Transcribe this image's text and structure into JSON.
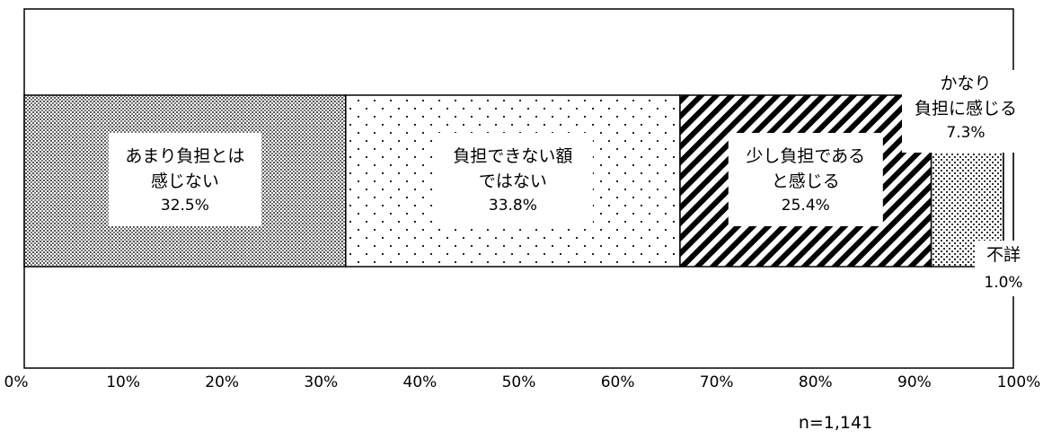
{
  "chart_data": {
    "type": "bar",
    "orientation": "horizontal",
    "stacked": true,
    "title": "",
    "xlabel": "",
    "ylabel": "",
    "xlim": [
      0,
      100
    ],
    "grid": false,
    "ticks": [
      "0%",
      "10%",
      "20%",
      "30%",
      "40%",
      "50%",
      "60%",
      "70%",
      "80%",
      "90%",
      "100%"
    ],
    "segments": [
      {
        "key": "s1",
        "lines": [
          "あまり負担とは",
          "感じない"
        ],
        "value": 32.5,
        "label": "32.5%",
        "pattern": "fine-dots"
      },
      {
        "key": "s2",
        "lines": [
          "負担できない額",
          "ではない"
        ],
        "value": 33.8,
        "label": "33.8%",
        "pattern": "sparse-dots"
      },
      {
        "key": "s3",
        "lines": [
          "少し負担である",
          "と感じる"
        ],
        "value": 25.4,
        "label": "25.4%",
        "pattern": "diagonal-stripes"
      },
      {
        "key": "s4",
        "lines": [
          "かなり",
          "負担に感じる"
        ],
        "value": 7.3,
        "label": "7.3%",
        "pattern": "checker-dots"
      },
      {
        "key": "s5",
        "lines": [
          "不詳"
        ],
        "value": 1.0,
        "label": "1.0%",
        "pattern": "white"
      }
    ],
    "note": "n=1,141"
  }
}
